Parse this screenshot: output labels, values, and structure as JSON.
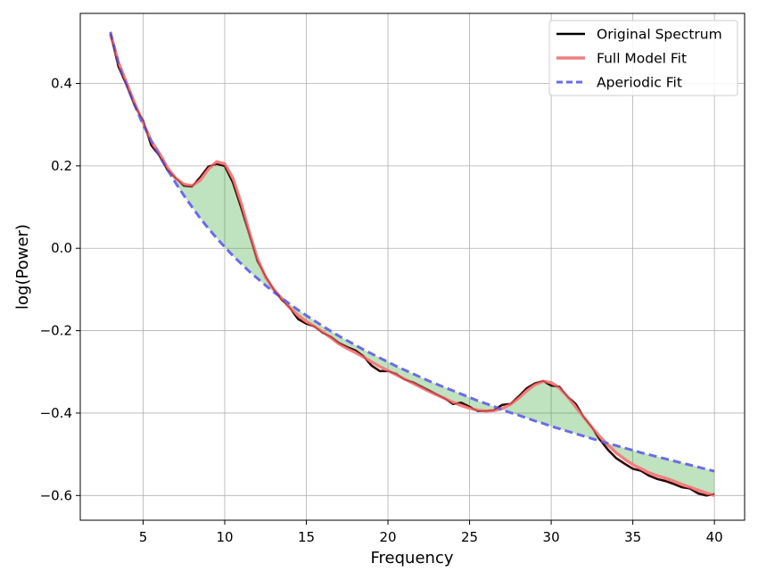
{
  "chart_data": {
    "type": "line",
    "xlabel": "Frequency",
    "ylabel": "log(Power)",
    "xlim": [
      1.15,
      41.85
    ],
    "ylim": [
      -0.66,
      0.57
    ],
    "xticks": [
      5,
      10,
      15,
      20,
      25,
      30,
      35,
      40
    ],
    "yticks": [
      -0.6,
      -0.4,
      -0.2,
      0.0,
      0.2,
      0.4
    ],
    "xtick_labels": [
      "5",
      "10",
      "15",
      "20",
      "25",
      "30",
      "35",
      "40"
    ],
    "ytick_labels": [
      "−0.6",
      "−0.4",
      "−0.2",
      "0.0",
      "0.2",
      "0.4"
    ],
    "grid": true,
    "legend_position": "top-right",
    "x": [
      3,
      3.5,
      4,
      4.5,
      5,
      5.5,
      6,
      6.5,
      7,
      7.5,
      8,
      8.5,
      9,
      9.5,
      10,
      10.5,
      11,
      11.5,
      12,
      12.5,
      13,
      13.5,
      14,
      14.5,
      15,
      15.5,
      16,
      16.5,
      17,
      17.5,
      18,
      18.5,
      19,
      19.5,
      20,
      20.5,
      21,
      21.5,
      22,
      22.5,
      23,
      23.5,
      24,
      24.5,
      25,
      25.5,
      26,
      26.5,
      27,
      27.5,
      28,
      28.5,
      29,
      29.5,
      30,
      30.5,
      31,
      31.5,
      32,
      32.5,
      33,
      33.5,
      34,
      34.5,
      35,
      35.5,
      36,
      36.5,
      37,
      37.5,
      38,
      38.5,
      39,
      39.5,
      40
    ],
    "series": [
      {
        "name": "Original Spectrum",
        "color": "#000000",
        "values": [
          0.52,
          0.44,
          0.395,
          0.345,
          0.31,
          0.25,
          0.225,
          0.19,
          0.17,
          0.152,
          0.15,
          0.172,
          0.198,
          0.205,
          0.2,
          0.16,
          0.1,
          0.035,
          -0.03,
          -0.068,
          -0.1,
          -0.125,
          -0.145,
          -0.172,
          -0.183,
          -0.19,
          -0.205,
          -0.215,
          -0.23,
          -0.24,
          -0.248,
          -0.262,
          -0.285,
          -0.298,
          -0.298,
          -0.305,
          -0.318,
          -0.325,
          -0.335,
          -0.345,
          -0.355,
          -0.365,
          -0.378,
          -0.375,
          -0.385,
          -0.395,
          -0.395,
          -0.393,
          -0.38,
          -0.378,
          -0.36,
          -0.34,
          -0.328,
          -0.322,
          -0.333,
          -0.336,
          -0.36,
          -0.378,
          -0.41,
          -0.435,
          -0.465,
          -0.49,
          -0.51,
          -0.523,
          -0.535,
          -0.54,
          -0.552,
          -0.56,
          -0.565,
          -0.572,
          -0.58,
          -0.583,
          -0.595,
          -0.6,
          -0.597
        ]
      },
      {
        "name": "Full Model Fit",
        "color": "#f08080",
        "values": [
          0.52,
          0.45,
          0.4,
          0.35,
          0.305,
          0.26,
          0.23,
          0.195,
          0.17,
          0.155,
          0.152,
          0.165,
          0.192,
          0.21,
          0.205,
          0.17,
          0.11,
          0.04,
          -0.025,
          -0.07,
          -0.1,
          -0.122,
          -0.145,
          -0.163,
          -0.178,
          -0.19,
          -0.203,
          -0.217,
          -0.232,
          -0.243,
          -0.253,
          -0.264,
          -0.276,
          -0.287,
          -0.297,
          -0.307,
          -0.317,
          -0.327,
          -0.337,
          -0.347,
          -0.356,
          -0.365,
          -0.374,
          -0.382,
          -0.388,
          -0.393,
          -0.395,
          -0.394,
          -0.389,
          -0.379,
          -0.364,
          -0.346,
          -0.331,
          -0.323,
          -0.326,
          -0.339,
          -0.36,
          -0.385,
          -0.41,
          -0.435,
          -0.458,
          -0.478,
          -0.497,
          -0.512,
          -0.525,
          -0.535,
          -0.545,
          -0.552,
          -0.558,
          -0.565,
          -0.573,
          -0.58,
          -0.587,
          -0.594,
          -0.6
        ]
      },
      {
        "name": "Aperiodic Fit",
        "color": "#6b6be8",
        "values": [
          0.525,
          0.445,
          0.395,
          0.345,
          0.3,
          0.26,
          0.224,
          0.19,
          0.158,
          0.128,
          0.1,
          0.073,
          0.048,
          0.025,
          0.003,
          -0.018,
          -0.037,
          -0.056,
          -0.073,
          -0.09,
          -0.106,
          -0.121,
          -0.136,
          -0.15,
          -0.163,
          -0.176,
          -0.189,
          -0.201,
          -0.213,
          -0.224,
          -0.235,
          -0.246,
          -0.256,
          -0.266,
          -0.276,
          -0.286,
          -0.295,
          -0.304,
          -0.313,
          -0.322,
          -0.33,
          -0.338,
          -0.346,
          -0.354,
          -0.362,
          -0.37,
          -0.377,
          -0.384,
          -0.392,
          -0.399,
          -0.405,
          -0.412,
          -0.419,
          -0.425,
          -0.432,
          -0.438,
          -0.444,
          -0.45,
          -0.456,
          -0.462,
          -0.468,
          -0.474,
          -0.479,
          -0.485,
          -0.49,
          -0.496,
          -0.501,
          -0.506,
          -0.511,
          -0.516,
          -0.521,
          -0.526,
          -0.531,
          -0.536,
          -0.541
        ]
      }
    ],
    "shaded_region": {
      "between": [
        "Full Model Fit",
        "Aperiodic Fit"
      ],
      "color": "#2ca02c"
    }
  }
}
